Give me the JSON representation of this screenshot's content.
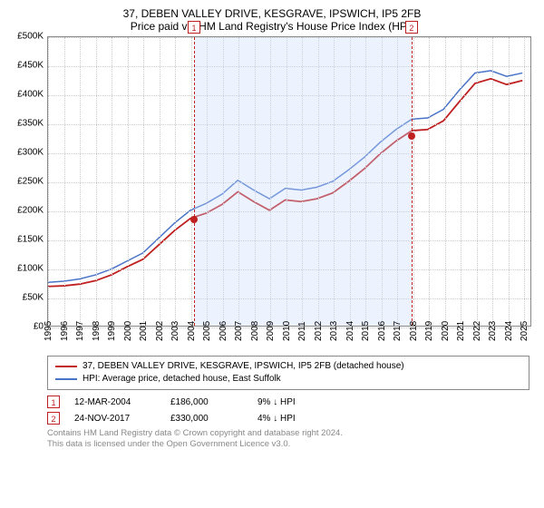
{
  "title": "37, DEBEN VALLEY DRIVE, KESGRAVE, IPSWICH, IP5 2FB",
  "subtitle": "Price paid vs. HM Land Registry's House Price Index (HPI)",
  "chart": {
    "type": "line",
    "xlim": [
      1995,
      2025.5
    ],
    "ylim": [
      0,
      500000
    ],
    "ytick_step": 50000,
    "y_ticks": [
      "£0",
      "£50K",
      "£100K",
      "£150K",
      "£200K",
      "£250K",
      "£300K",
      "£350K",
      "£400K",
      "£450K",
      "£500K"
    ],
    "x_ticks": [
      1995,
      1996,
      1997,
      1998,
      1999,
      2000,
      2001,
      2002,
      2003,
      2004,
      2005,
      2006,
      2007,
      2008,
      2009,
      2010,
      2011,
      2012,
      2013,
      2014,
      2015,
      2016,
      2017,
      2018,
      2019,
      2020,
      2021,
      2022,
      2023,
      2024,
      2025
    ],
    "grid_color": "#cccccc",
    "border_color": "#888888",
    "shade_color": "rgba(200,220,255,0.35)",
    "shade_range": [
      2004.2,
      2017.9
    ],
    "background_color": "#ffffff",
    "title_fontsize": 12,
    "label_fontsize": 10,
    "series": [
      {
        "name": "price_paid",
        "label": "37, DEBEN VALLEY DRIVE, KESGRAVE, IPSWICH, IP5 2FB (detached house)",
        "color": "#c02020",
        "line_width": 1.8,
        "data": [
          [
            1995,
            68000
          ],
          [
            1996,
            69000
          ],
          [
            1997,
            72000
          ],
          [
            1998,
            78000
          ],
          [
            1999,
            88000
          ],
          [
            2000,
            102000
          ],
          [
            2001,
            115000
          ],
          [
            2002,
            140000
          ],
          [
            2003,
            165000
          ],
          [
            2004,
            186000
          ],
          [
            2005,
            195000
          ],
          [
            2006,
            210000
          ],
          [
            2007,
            232000
          ],
          [
            2008,
            215000
          ],
          [
            2009,
            200000
          ],
          [
            2010,
            218000
          ],
          [
            2011,
            215000
          ],
          [
            2012,
            220000
          ],
          [
            2013,
            230000
          ],
          [
            2014,
            250000
          ],
          [
            2015,
            272000
          ],
          [
            2016,
            298000
          ],
          [
            2017,
            320000
          ],
          [
            2018,
            338000
          ],
          [
            2019,
            340000
          ],
          [
            2020,
            355000
          ],
          [
            2021,
            388000
          ],
          [
            2022,
            420000
          ],
          [
            2023,
            428000
          ],
          [
            2024,
            418000
          ],
          [
            2025,
            425000
          ]
        ]
      },
      {
        "name": "hpi",
        "label": "HPI: Average price, detached house, East Suffolk",
        "color": "#4a74c8",
        "line_width": 1.5,
        "data": [
          [
            1995,
            75000
          ],
          [
            1996,
            77000
          ],
          [
            1997,
            81000
          ],
          [
            1998,
            88000
          ],
          [
            1999,
            98000
          ],
          [
            2000,
            112000
          ],
          [
            2001,
            126000
          ],
          [
            2002,
            152000
          ],
          [
            2003,
            178000
          ],
          [
            2004,
            200000
          ],
          [
            2005,
            212000
          ],
          [
            2006,
            228000
          ],
          [
            2007,
            252000
          ],
          [
            2008,
            235000
          ],
          [
            2009,
            220000
          ],
          [
            2010,
            238000
          ],
          [
            2011,
            235000
          ],
          [
            2012,
            240000
          ],
          [
            2013,
            250000
          ],
          [
            2014,
            270000
          ],
          [
            2015,
            292000
          ],
          [
            2016,
            318000
          ],
          [
            2017,
            340000
          ],
          [
            2018,
            358000
          ],
          [
            2019,
            360000
          ],
          [
            2020,
            375000
          ],
          [
            2021,
            408000
          ],
          [
            2022,
            438000
          ],
          [
            2023,
            442000
          ],
          [
            2024,
            432000
          ],
          [
            2025,
            438000
          ]
        ]
      }
    ],
    "markers": [
      {
        "id": "1",
        "x": 2004.2,
        "price": 186000
      },
      {
        "id": "2",
        "x": 2017.9,
        "price": 330000
      }
    ]
  },
  "legend": {
    "items": [
      {
        "color": "#c02020",
        "label": "37, DEBEN VALLEY DRIVE, KESGRAVE, IPSWICH, IP5 2FB (detached house)"
      },
      {
        "color": "#4a74c8",
        "label": "HPI: Average price, detached house, East Suffolk"
      }
    ]
  },
  "events": [
    {
      "id": "1",
      "date": "12-MAR-2004",
      "price": "£186,000",
      "delta": "9% ↓ HPI"
    },
    {
      "id": "2",
      "date": "24-NOV-2017",
      "price": "£330,000",
      "delta": "4% ↓ HPI"
    }
  ],
  "attribution": {
    "line1": "Contains HM Land Registry data © Crown copyright and database right 2024.",
    "line2": "This data is licensed under the Open Government Licence v3.0."
  }
}
